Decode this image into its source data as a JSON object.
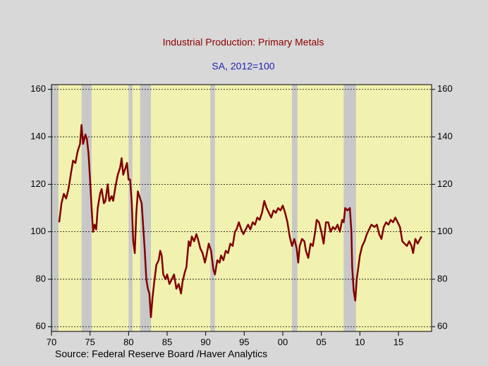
{
  "chart_data": {
    "type": "line",
    "title": "Industrial Production: Primary Metals",
    "subtitle": "SA, 2012=100",
    "source": "Source:  Federal Reserve Board /Haver Analytics",
    "color": "#800000",
    "grid": true,
    "xlim": [
      1970,
      2019.3
    ],
    "ylim": [
      58,
      162
    ],
    "yticks": [
      60,
      80,
      100,
      120,
      140,
      160
    ],
    "xticks": [
      {
        "value": 1970,
        "label": "70"
      },
      {
        "value": 1975,
        "label": "75"
      },
      {
        "value": 1980,
        "label": "80"
      },
      {
        "value": 1985,
        "label": "85"
      },
      {
        "value": 1990,
        "label": "90"
      },
      {
        "value": 1995,
        "label": "95"
      },
      {
        "value": 2000,
        "label": "00"
      },
      {
        "value": 2005,
        "label": "05"
      },
      {
        "value": 2010,
        "label": "10"
      },
      {
        "value": 2015,
        "label": "15"
      }
    ],
    "shaded_periods": [
      [
        1970,
        1970.9
      ],
      [
        1973.9,
        1975.2
      ],
      [
        1980.0,
        1980.5
      ],
      [
        1981.5,
        1982.9
      ],
      [
        1990.6,
        1991.2
      ],
      [
        2001.2,
        2001.9
      ],
      [
        2007.9,
        2009.5
      ]
    ],
    "x": [
      1971.0,
      1971.3,
      1971.6,
      1971.9,
      1972.2,
      1972.5,
      1972.8,
      1973.1,
      1973.4,
      1973.7,
      1973.9,
      1974.1,
      1974.4,
      1974.6,
      1974.8,
      1975.0,
      1975.2,
      1975.4,
      1975.6,
      1975.8,
      1976.0,
      1976.3,
      1976.5,
      1976.8,
      1977.0,
      1977.3,
      1977.5,
      1977.8,
      1978.0,
      1978.3,
      1978.6,
      1978.9,
      1979.1,
      1979.3,
      1979.6,
      1979.8,
      1980.0,
      1980.2,
      1980.4,
      1980.6,
      1980.8,
      1981.0,
      1981.2,
      1981.4,
      1981.7,
      1981.9,
      1982.1,
      1982.3,
      1982.5,
      1982.7,
      1982.9,
      1983.1,
      1983.3,
      1983.6,
      1983.9,
      1984.1,
      1984.3,
      1984.5,
      1984.8,
      1985.0,
      1985.3,
      1985.6,
      1985.9,
      1986.2,
      1986.5,
      1986.8,
      1987.0,
      1987.3,
      1987.5,
      1987.8,
      1988.0,
      1988.2,
      1988.5,
      1988.8,
      1989.0,
      1989.3,
      1989.6,
      1989.9,
      1990.1,
      1990.4,
      1990.7,
      1991.0,
      1991.2,
      1991.5,
      1991.8,
      1992.0,
      1992.3,
      1992.6,
      1992.9,
      1993.2,
      1993.5,
      1993.8,
      1994.0,
      1994.3,
      1994.6,
      1994.9,
      1995.2,
      1995.5,
      1995.8,
      1996.1,
      1996.4,
      1996.7,
      1997.0,
      1997.3,
      1997.6,
      1997.9,
      1998.2,
      1998.5,
      1998.8,
      1999.1,
      1999.4,
      1999.7,
      2000.0,
      2000.3,
      2000.6,
      2000.9,
      2001.2,
      2001.5,
      2001.8,
      2002.0,
      2002.2,
      2002.5,
      2002.8,
      2003.0,
      2003.3,
      2003.6,
      2003.9,
      2004.2,
      2004.4,
      2004.7,
      2005.0,
      2005.3,
      2005.6,
      2005.9,
      2006.2,
      2006.5,
      2006.8,
      2007.1,
      2007.4,
      2007.7,
      2007.9,
      2008.1,
      2008.4,
      2008.7,
      2008.9,
      2009.0,
      2009.2,
      2009.4,
      2009.6,
      2009.8,
      2010.0,
      2010.3,
      2010.6,
      2010.9,
      2011.2,
      2011.5,
      2011.9,
      2012.2,
      2012.5,
      2012.8,
      2013.1,
      2013.4,
      2013.7,
      2014.0,
      2014.3,
      2014.6,
      2014.9,
      2015.2,
      2015.5,
      2015.8,
      2016.1,
      2016.4,
      2016.7,
      2016.9,
      2017.2,
      2017.5,
      2017.8,
      2018.0
    ],
    "values": [
      104,
      112,
      116,
      114,
      118,
      124,
      130,
      129,
      134,
      137,
      145,
      137,
      141,
      139,
      133,
      122,
      110,
      100,
      103,
      101,
      110,
      116,
      118,
      112,
      113,
      120,
      113,
      115,
      113,
      119,
      124,
      127,
      131,
      124,
      127,
      129,
      122,
      122,
      113,
      96,
      91,
      108,
      117,
      115,
      112,
      102,
      92,
      80,
      76,
      74,
      64,
      72,
      78,
      86,
      88,
      92,
      90,
      82,
      80,
      82,
      78,
      80,
      82,
      76,
      78,
      74,
      79,
      83,
      85,
      96,
      94,
      98,
      96,
      99,
      97,
      93,
      91,
      87,
      90,
      95,
      92,
      84,
      82,
      88,
      87,
      90,
      88,
      92,
      91,
      95,
      94,
      100,
      101,
      104,
      101,
      99,
      101,
      103,
      101,
      104,
      103,
      106,
      105,
      108,
      113,
      110,
      108,
      106,
      109,
      108,
      110,
      109,
      111,
      108,
      104,
      98,
      94,
      97,
      93,
      87,
      94,
      97,
      96,
      92,
      89,
      95,
      94,
      100,
      105,
      104,
      100,
      95,
      104,
      104,
      100,
      102,
      101,
      103,
      100,
      105,
      104,
      110,
      109,
      110,
      100,
      85,
      75,
      71,
      80,
      85,
      90,
      94,
      96,
      99,
      101,
      103,
      102,
      103,
      99,
      97,
      102,
      104,
      103,
      105,
      104,
      106,
      104,
      102,
      96,
      95,
      94,
      96,
      94,
      91,
      97,
      95,
      97,
      98
    ]
  }
}
